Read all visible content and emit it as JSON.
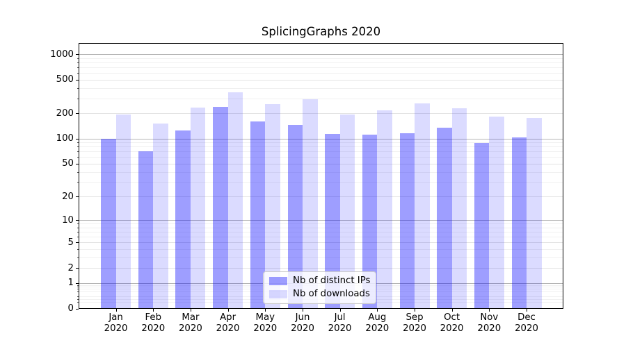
{
  "chart_data": {
    "type": "bar",
    "title": "SplicingGraphs 2020",
    "year_label": "2020",
    "months": [
      "Jan",
      "Feb",
      "Mar",
      "Apr",
      "May",
      "Jun",
      "Jul",
      "Aug",
      "Sep",
      "Oct",
      "Nov",
      "Dec"
    ],
    "series": [
      {
        "name": "Nb of distinct IPs",
        "color": "rgba(0,0,255,0.38)",
        "values": [
          100,
          71,
          127,
          239,
          163,
          146,
          115,
          112,
          118,
          135,
          90,
          104
        ]
      },
      {
        "name": "Nb of downloads",
        "color": "rgba(0,0,255,0.14)",
        "values": [
          197,
          152,
          237,
          355,
          258,
          296,
          195,
          217,
          263,
          233,
          185,
          177
        ]
      }
    ],
    "yscale": "log1p",
    "yticks": [
      0,
      1,
      2,
      5,
      10,
      20,
      50,
      100,
      200,
      500,
      1000
    ],
    "ylim": [
      0,
      1370
    ],
    "grid": true,
    "legend_position": "lower center",
    "colors": {
      "grid_power10": "#b5b5b5",
      "grid_major": "#e3e3e3",
      "grid_minor": "#f0f0f0",
      "axis": "#000000",
      "legend_border": "#cccccc"
    }
  }
}
